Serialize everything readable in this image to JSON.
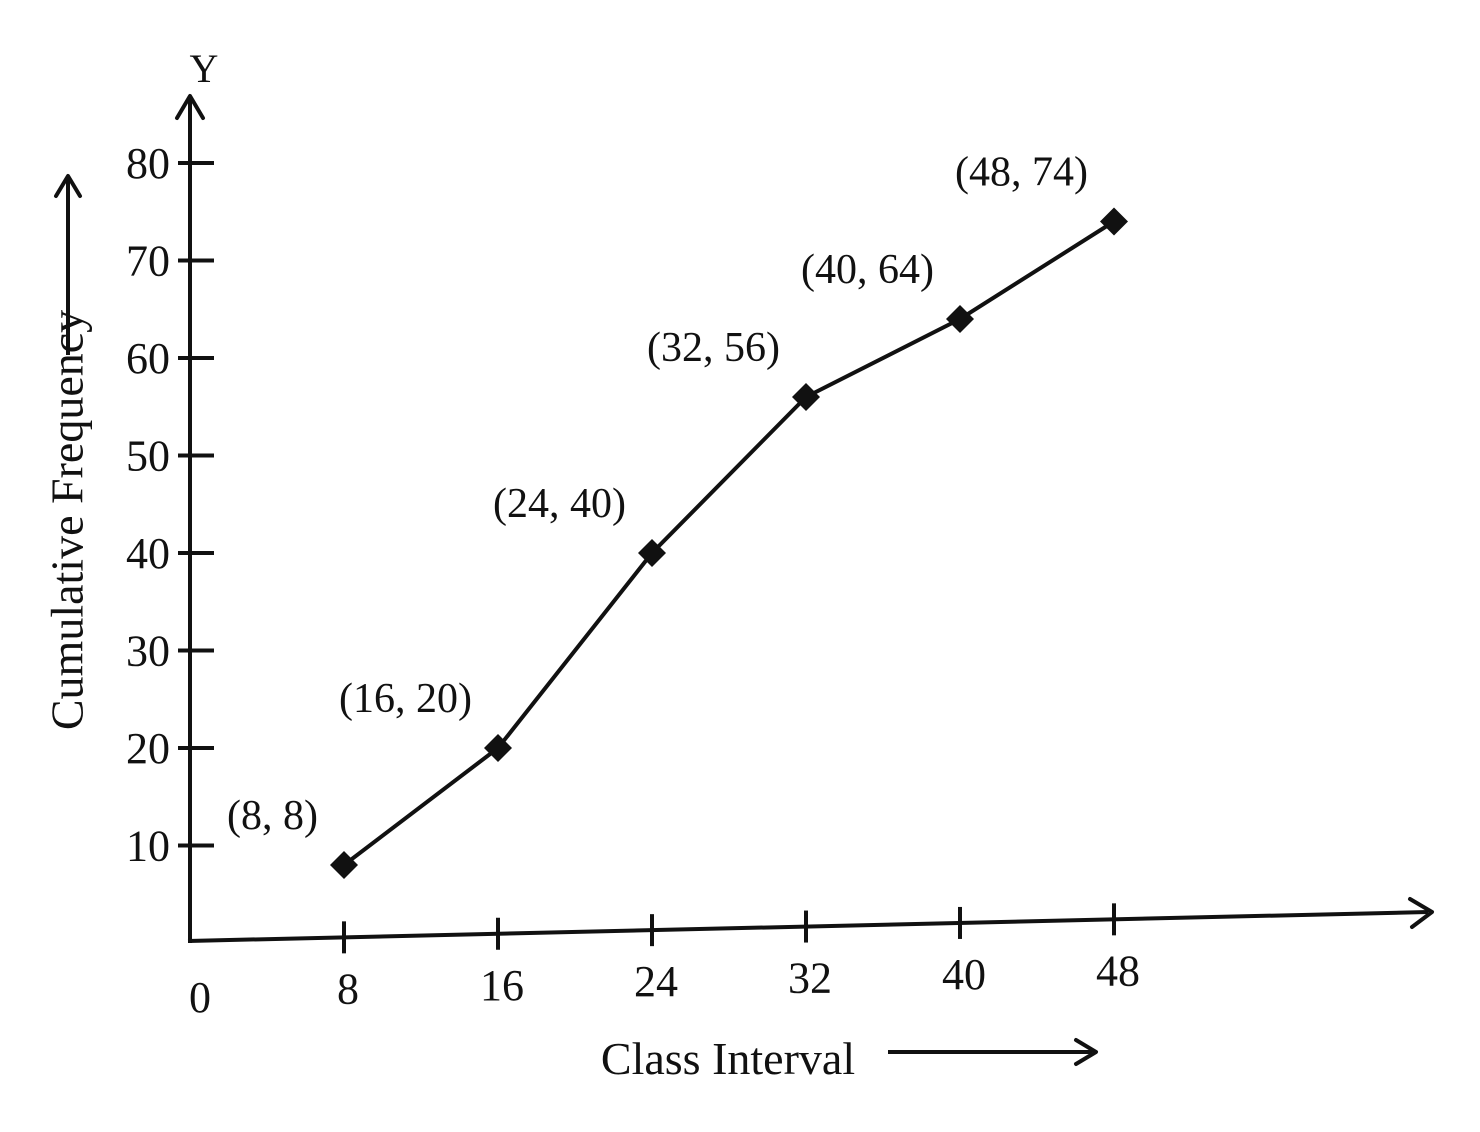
{
  "chart_data": {
    "type": "line",
    "xlabel": "Class Interval",
    "ylabel": "Cumulative Frequency",
    "y_axis_letter": "Y",
    "origin_label": "0",
    "x_ticks": [
      8,
      16,
      24,
      32,
      40,
      48
    ],
    "x_tick_labels": [
      "8",
      "16",
      "24",
      "32",
      "40",
      "48"
    ],
    "y_ticks": [
      10,
      20,
      30,
      40,
      50,
      60,
      70,
      80
    ],
    "y_tick_labels": [
      "10",
      "20",
      "30",
      "40",
      "50",
      "60",
      "70",
      "80"
    ],
    "xlim": [
      0,
      52
    ],
    "ylim": [
      0,
      88
    ],
    "grid": false,
    "legend": "none",
    "series": [
      {
        "x": [
          8,
          16,
          24,
          32,
          40,
          48
        ],
        "y": [
          8,
          20,
          40,
          56,
          64,
          74
        ],
        "point_labels": [
          "(8, 8)",
          "(16, 20)",
          "(24, 40)",
          "(32, 56)",
          "(40, 64)",
          "(48, 74)"
        ]
      }
    ],
    "colors": {
      "ink": "#111111",
      "background": "#ffffff"
    }
  }
}
